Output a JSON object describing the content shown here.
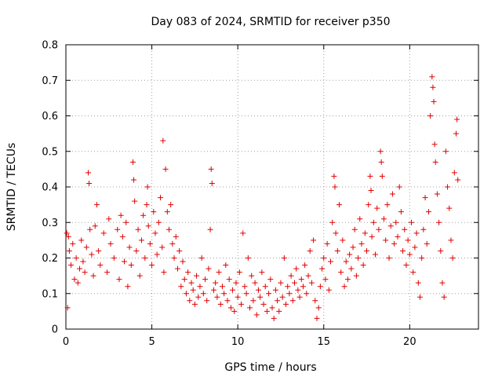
{
  "chart_data": {
    "type": "scatter",
    "title": "Day 083 of 2024, SRMTID for receiver p350",
    "xlabel": "GPS time / hours",
    "ylabel": "SRMTID / TECUs",
    "xlim": [
      0,
      24
    ],
    "ylim": [
      0,
      0.8
    ],
    "x_ticks": [
      0,
      5,
      10,
      15,
      20
    ],
    "x_tick_labels": [
      "0",
      "5",
      "10",
      "15",
      "20"
    ],
    "y_ticks": [
      0,
      0.1,
      0.2,
      0.3,
      0.4,
      0.5,
      0.6,
      0.7,
      0.8
    ],
    "y_tick_labels": [
      "0",
      "0.1",
      "0.2",
      "0.3",
      "0.4",
      "0.5",
      "0.6",
      "0.7",
      "0.8"
    ],
    "grid": true,
    "marker": "+",
    "marker_color": "#e00000",
    "series": [
      {
        "name": "SRMTID",
        "points": [
          [
            0.05,
            0.27
          ],
          [
            0.1,
            0.06
          ],
          [
            0.15,
            0.26
          ],
          [
            0.2,
            0.22
          ],
          [
            0.3,
            0.18
          ],
          [
            0.4,
            0.24
          ],
          [
            0.5,
            0.14
          ],
          [
            0.6,
            0.2
          ],
          [
            0.7,
            0.13
          ],
          [
            0.8,
            0.17
          ],
          [
            0.9,
            0.25
          ],
          [
            1.0,
            0.19
          ],
          [
            1.1,
            0.16
          ],
          [
            1.2,
            0.23
          ],
          [
            1.3,
            0.44
          ],
          [
            1.35,
            0.41
          ],
          [
            1.4,
            0.28
          ],
          [
            1.5,
            0.21
          ],
          [
            1.6,
            0.15
          ],
          [
            1.7,
            0.29
          ],
          [
            1.8,
            0.35
          ],
          [
            1.9,
            0.22
          ],
          [
            2.0,
            0.18
          ],
          [
            2.2,
            0.27
          ],
          [
            2.4,
            0.16
          ],
          [
            2.5,
            0.31
          ],
          [
            2.6,
            0.24
          ],
          [
            2.8,
            0.2
          ],
          [
            3.0,
            0.28
          ],
          [
            3.1,
            0.14
          ],
          [
            3.2,
            0.32
          ],
          [
            3.3,
            0.26
          ],
          [
            3.4,
            0.19
          ],
          [
            3.5,
            0.3
          ],
          [
            3.6,
            0.12
          ],
          [
            3.7,
            0.23
          ],
          [
            3.8,
            0.18
          ],
          [
            3.9,
            0.47
          ],
          [
            3.95,
            0.42
          ],
          [
            4.0,
            0.36
          ],
          [
            4.1,
            0.22
          ],
          [
            4.2,
            0.28
          ],
          [
            4.3,
            0.15
          ],
          [
            4.4,
            0.25
          ],
          [
            4.5,
            0.32
          ],
          [
            4.6,
            0.2
          ],
          [
            4.7,
            0.35
          ],
          [
            4.75,
            0.4
          ],
          [
            4.8,
            0.29
          ],
          [
            4.9,
            0.24
          ],
          [
            5.0,
            0.18
          ],
          [
            5.1,
            0.33
          ],
          [
            5.2,
            0.27
          ],
          [
            5.3,
            0.21
          ],
          [
            5.4,
            0.3
          ],
          [
            5.5,
            0.37
          ],
          [
            5.6,
            0.23
          ],
          [
            5.65,
            0.53
          ],
          [
            5.7,
            0.16
          ],
          [
            5.8,
            0.45
          ],
          [
            5.9,
            0.33
          ],
          [
            6.0,
            0.28
          ],
          [
            6.1,
            0.35
          ],
          [
            6.2,
            0.24
          ],
          [
            6.3,
            0.2
          ],
          [
            6.4,
            0.26
          ],
          [
            6.5,
            0.17
          ],
          [
            6.6,
            0.22
          ],
          [
            6.7,
            0.12
          ],
          [
            6.8,
            0.19
          ],
          [
            6.9,
            0.14
          ],
          [
            7.0,
            0.1
          ],
          [
            7.1,
            0.16
          ],
          [
            7.2,
            0.08
          ],
          [
            7.3,
            0.13
          ],
          [
            7.4,
            0.11
          ],
          [
            7.5,
            0.07
          ],
          [
            7.6,
            0.15
          ],
          [
            7.7,
            0.09
          ],
          [
            7.8,
            0.12
          ],
          [
            7.9,
            0.2
          ],
          [
            8.0,
            0.1
          ],
          [
            8.1,
            0.14
          ],
          [
            8.2,
            0.08
          ],
          [
            8.3,
            0.17
          ],
          [
            8.4,
            0.28
          ],
          [
            8.45,
            0.45
          ],
          [
            8.5,
            0.41
          ],
          [
            8.6,
            0.11
          ],
          [
            8.7,
            0.13
          ],
          [
            8.8,
            0.09
          ],
          [
            8.9,
            0.16
          ],
          [
            9.0,
            0.07
          ],
          [
            9.1,
            0.12
          ],
          [
            9.2,
            0.1
          ],
          [
            9.3,
            0.18
          ],
          [
            9.4,
            0.08
          ],
          [
            9.5,
            0.14
          ],
          [
            9.6,
            0.06
          ],
          [
            9.7,
            0.11
          ],
          [
            9.8,
            0.05
          ],
          [
            9.9,
            0.13
          ],
          [
            10.0,
            0.09
          ],
          [
            10.1,
            0.16
          ],
          [
            10.2,
            0.07
          ],
          [
            10.3,
            0.27
          ],
          [
            10.4,
            0.12
          ],
          [
            10.5,
            0.1
          ],
          [
            10.6,
            0.2
          ],
          [
            10.7,
            0.06
          ],
          [
            10.8,
            0.15
          ],
          [
            10.9,
            0.08
          ],
          [
            11.0,
            0.13
          ],
          [
            11.1,
            0.04
          ],
          [
            11.2,
            0.11
          ],
          [
            11.3,
            0.09
          ],
          [
            11.4,
            0.16
          ],
          [
            11.5,
            0.07
          ],
          [
            11.6,
            0.12
          ],
          [
            11.7,
            0.05
          ],
          [
            11.8,
            0.1
          ],
          [
            11.9,
            0.14
          ],
          [
            12.0,
            0.06
          ],
          [
            12.1,
            0.03
          ],
          [
            12.2,
            0.11
          ],
          [
            12.3,
            0.08
          ],
          [
            12.4,
            0.05
          ],
          [
            12.5,
            0.13
          ],
          [
            12.6,
            0.09
          ],
          [
            12.7,
            0.2
          ],
          [
            12.8,
            0.07
          ],
          [
            12.9,
            0.12
          ],
          [
            13.0,
            0.1
          ],
          [
            13.1,
            0.15
          ],
          [
            13.2,
            0.08
          ],
          [
            13.3,
            0.13
          ],
          [
            13.4,
            0.17
          ],
          [
            13.5,
            0.11
          ],
          [
            13.6,
            0.09
          ],
          [
            13.7,
            0.14
          ],
          [
            13.8,
            0.12
          ],
          [
            13.9,
            0.18
          ],
          [
            14.0,
            0.1
          ],
          [
            14.1,
            0.15
          ],
          [
            14.2,
            0.22
          ],
          [
            14.3,
            0.13
          ],
          [
            14.4,
            0.25
          ],
          [
            14.5,
            0.08
          ],
          [
            14.6,
            0.03
          ],
          [
            14.7,
            0.06
          ],
          [
            14.8,
            0.12
          ],
          [
            14.9,
            0.17
          ],
          [
            15.0,
            0.2
          ],
          [
            15.1,
            0.14
          ],
          [
            15.2,
            0.24
          ],
          [
            15.3,
            0.11
          ],
          [
            15.4,
            0.19
          ],
          [
            15.5,
            0.3
          ],
          [
            15.6,
            0.43
          ],
          [
            15.65,
            0.4
          ],
          [
            15.7,
            0.27
          ],
          [
            15.8,
            0.22
          ],
          [
            15.9,
            0.35
          ],
          [
            16.0,
            0.16
          ],
          [
            16.1,
            0.25
          ],
          [
            16.2,
            0.12
          ],
          [
            16.3,
            0.19
          ],
          [
            16.4,
            0.14
          ],
          [
            16.5,
            0.21
          ],
          [
            16.6,
            0.17
          ],
          [
            16.7,
            0.23
          ],
          [
            16.8,
            0.28
          ],
          [
            16.9,
            0.15
          ],
          [
            17.0,
            0.2
          ],
          [
            17.1,
            0.31
          ],
          [
            17.2,
            0.24
          ],
          [
            17.3,
            0.18
          ],
          [
            17.4,
            0.27
          ],
          [
            17.5,
            0.22
          ],
          [
            17.6,
            0.35
          ],
          [
            17.7,
            0.43
          ],
          [
            17.75,
            0.39
          ],
          [
            17.8,
            0.26
          ],
          [
            17.9,
            0.3
          ],
          [
            18.0,
            0.21
          ],
          [
            18.1,
            0.34
          ],
          [
            18.2,
            0.28
          ],
          [
            18.3,
            0.5
          ],
          [
            18.35,
            0.47
          ],
          [
            18.4,
            0.43
          ],
          [
            18.5,
            0.31
          ],
          [
            18.6,
            0.25
          ],
          [
            18.7,
            0.35
          ],
          [
            18.8,
            0.2
          ],
          [
            18.9,
            0.29
          ],
          [
            19.0,
            0.38
          ],
          [
            19.1,
            0.24
          ],
          [
            19.2,
            0.3
          ],
          [
            19.3,
            0.26
          ],
          [
            19.4,
            0.4
          ],
          [
            19.5,
            0.33
          ],
          [
            19.6,
            0.22
          ],
          [
            19.7,
            0.28
          ],
          [
            19.8,
            0.18
          ],
          [
            19.9,
            0.25
          ],
          [
            20.0,
            0.21
          ],
          [
            20.1,
            0.3
          ],
          [
            20.2,
            0.16
          ],
          [
            20.3,
            0.23
          ],
          [
            20.4,
            0.27
          ],
          [
            20.5,
            0.13
          ],
          [
            20.6,
            0.09
          ],
          [
            20.7,
            0.2
          ],
          [
            20.8,
            0.28
          ],
          [
            20.9,
            0.37
          ],
          [
            21.0,
            0.24
          ],
          [
            21.1,
            0.33
          ],
          [
            21.2,
            0.6
          ],
          [
            21.3,
            0.71
          ],
          [
            21.35,
            0.68
          ],
          [
            21.4,
            0.64
          ],
          [
            21.45,
            0.52
          ],
          [
            21.5,
            0.47
          ],
          [
            21.6,
            0.38
          ],
          [
            21.7,
            0.3
          ],
          [
            21.8,
            0.22
          ],
          [
            21.9,
            0.13
          ],
          [
            22.0,
            0.09
          ],
          [
            22.1,
            0.5
          ],
          [
            22.2,
            0.4
          ],
          [
            22.3,
            0.34
          ],
          [
            22.4,
            0.25
          ],
          [
            22.5,
            0.2
          ],
          [
            22.6,
            0.44
          ],
          [
            22.7,
            0.55
          ],
          [
            22.75,
            0.59
          ],
          [
            22.8,
            0.42
          ]
        ]
      }
    ]
  }
}
